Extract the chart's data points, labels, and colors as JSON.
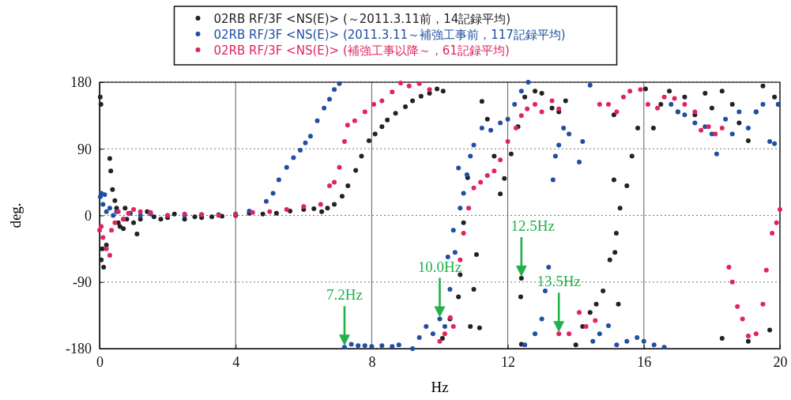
{
  "chart_data": {
    "type": "scatter",
    "xlabel": "Hz",
    "ylabel": "deg.",
    "xlim": [
      0,
      20
    ],
    "xticks": [
      0,
      4,
      8,
      12,
      16,
      20
    ],
    "ylim": [
      -180,
      180
    ],
    "yticks": [
      -180,
      -90,
      0,
      90,
      180
    ],
    "grid": true,
    "legend": "top",
    "marker": "circle",
    "annotations": [
      {
        "text": "7.2Hz",
        "x": 7.2,
        "y": -178
      },
      {
        "text": "10.0Hz",
        "x": 10.0,
        "y": -140
      },
      {
        "text": "12.5Hz",
        "x": 12.4,
        "y": -85
      },
      {
        "text": "13.5Hz",
        "x": 13.5,
        "y": -160
      }
    ],
    "series": [
      {
        "name": "02RB RF/3F <NS(E)>  (～2011.3.11前，14記録平均)",
        "color": "#222222",
        "x": [
          0.02,
          0.04,
          0.05,
          0.08,
          0.12,
          0.2,
          0.3,
          0.33,
          0.38,
          0.45,
          0.5,
          0.55,
          0.6,
          0.7,
          0.75,
          0.8,
          0.9,
          1.0,
          1.1,
          1.2,
          1.4,
          1.6,
          1.8,
          2.0,
          2.2,
          2.5,
          2.8,
          3.0,
          3.3,
          3.6,
          4.0,
          4.4,
          4.8,
          5.2,
          5.6,
          6.0,
          6.3,
          6.53,
          6.7,
          6.9,
          7.13,
          7.3,
          7.53,
          7.7,
          7.92,
          8.1,
          8.3,
          8.46,
          8.7,
          8.99,
          9.2,
          9.45,
          9.7,
          9.92,
          10.08,
          10.1,
          10.3,
          10.55,
          10.6,
          10.7,
          10.82,
          10.9,
          11.0,
          11.08,
          11.17,
          11.24,
          11.4,
          11.6,
          11.78,
          11.9,
          12.1,
          12.3,
          12.38,
          12.4,
          12.4,
          12.5,
          12.8,
          13.0,
          13.3,
          13.5,
          13.7,
          14.0,
          14.2,
          14.42,
          14.6,
          14.8,
          15.0,
          15.12,
          15.12,
          15.15,
          15.19,
          15.25,
          15.3,
          15.5,
          15.65,
          15.82,
          16.05,
          16.28,
          16.5,
          16.75,
          17.0,
          17.2,
          17.5,
          17.8,
          18.0,
          18.3,
          18.3,
          18.6,
          18.8,
          19.07,
          19.07,
          19.3,
          19.5,
          19.7,
          19.84,
          19.95
        ],
        "values": [
          160,
          150,
          -60,
          -45,
          -70,
          -40,
          77,
          60,
          35,
          20,
          10,
          -10,
          -15,
          -18,
          10,
          -5,
          3,
          -10,
          -25,
          -5,
          5,
          -2,
          -5,
          -3,
          2,
          -5,
          -2,
          -3,
          -2,
          -1,
          0,
          3,
          2,
          3,
          6,
          8,
          9,
          5,
          10,
          15,
          26,
          40,
          61,
          80,
          101,
          110,
          120,
          129,
          138,
          147,
          155,
          161,
          165,
          171,
          -166,
          168,
          -140,
          -110,
          -80,
          -10,
          51,
          -150,
          -100,
          -53,
          -152,
          154,
          130,
          80,
          29,
          50,
          83,
          120,
          -110,
          -85,
          -174,
          160,
          168,
          165,
          145,
          140,
          155,
          -175,
          -150,
          -131,
          -120,
          -102,
          -60,
          136,
          48,
          -50,
          -24,
          -120,
          10,
          40,
          80,
          118,
          171,
          118,
          150,
          168,
          140,
          160,
          136,
          165,
          145,
          168,
          -166,
          150,
          125,
          101,
          -170,
          140,
          175,
          -155,
          160,
          150
        ]
      },
      {
        "name": "02RB RF/3F <NS(E)>  (2011.3.11～補強工事前，117記録平均)",
        "color": "#1f4fa3",
        "x": [
          0.02,
          0.05,
          0.1,
          0.15,
          0.2,
          0.3,
          0.4,
          0.5,
          0.7,
          0.9,
          1.2,
          1.5,
          2.0,
          2.5,
          3.0,
          3.5,
          4.0,
          4.4,
          4.9,
          5.1,
          5.27,
          5.5,
          5.7,
          5.9,
          6.05,
          6.2,
          6.4,
          6.6,
          6.76,
          6.9,
          7.05,
          7.2,
          7.4,
          7.6,
          7.8,
          8.0,
          8.3,
          8.6,
          8.8,
          9.2,
          9.4,
          9.6,
          9.8,
          10.0,
          10.15,
          10.24,
          10.3,
          10.4,
          10.45,
          10.55,
          10.6,
          10.7,
          10.8,
          10.9,
          11.0,
          11.24,
          11.5,
          11.78,
          12.0,
          12.2,
          12.4,
          12.5,
          12.6,
          12.8,
          13.0,
          13.1,
          13.2,
          13.33,
          13.4,
          13.5,
          13.64,
          13.8,
          14.1,
          14.2,
          14.42,
          14.5,
          14.7,
          14.96,
          15.2,
          15.5,
          15.8,
          16.0,
          16.3,
          16.6,
          16.8,
          17.0,
          17.2,
          17.5,
          17.8,
          18.0,
          18.14,
          18.4,
          18.6,
          18.8,
          19.07,
          19.3,
          19.5,
          19.7,
          19.84,
          19.95
        ],
        "values": [
          25,
          30,
          15,
          28,
          5,
          10,
          0,
          5,
          -5,
          3,
          0,
          2,
          0,
          0,
          1,
          1,
          2,
          6,
          19,
          30,
          48,
          65,
          78,
          88,
          98,
          107,
          128,
          145,
          157,
          170,
          178,
          -178,
          -174,
          -176,
          -176,
          -177,
          -176,
          -177,
          -175,
          -180,
          -165,
          -150,
          -160,
          -140,
          -150,
          -56,
          -100,
          -20,
          -50,
          64,
          10,
          30,
          55,
          80,
          95,
          118,
          115,
          125,
          130,
          150,
          168,
          -175,
          180,
          -160,
          -140,
          -102,
          -70,
          48,
          80,
          95,
          118,
          110,
          72,
          100,
          176,
          -170,
          -160,
          -149,
          -175,
          -170,
          -165,
          -170,
          -175,
          -178,
          150,
          140,
          136,
          125,
          120,
          110,
          83,
          130,
          110,
          140,
          118,
          140,
          150,
          100,
          97,
          150
        ]
      },
      {
        "name": "02RB RF/3F <NS(E)>  (補強工事以降～，61記録平均)",
        "color": "#e0245e",
        "x": [
          0.0,
          0.05,
          0.1,
          0.2,
          0.3,
          0.35,
          0.45,
          0.55,
          0.7,
          0.85,
          1.0,
          1.2,
          1.5,
          2.0,
          2.5,
          3.0,
          3.5,
          4.0,
          4.5,
          5.0,
          5.5,
          6.0,
          6.5,
          6.76,
          6.9,
          7.05,
          7.2,
          7.29,
          7.5,
          7.8,
          8.06,
          8.3,
          8.6,
          8.85,
          9.1,
          9.4,
          9.7,
          10.0,
          10.15,
          10.31,
          10.4,
          10.6,
          10.7,
          10.85,
          11.0,
          11.2,
          11.4,
          11.6,
          11.78,
          12.0,
          12.24,
          12.4,
          12.57,
          12.8,
          13.0,
          13.3,
          13.5,
          13.5,
          13.8,
          14.1,
          14.3,
          14.57,
          14.7,
          14.96,
          15.2,
          15.4,
          15.59,
          15.9,
          16.12,
          16.4,
          16.6,
          16.9,
          17.2,
          17.5,
          17.68,
          17.9,
          18.1,
          18.3,
          18.5,
          18.6,
          18.75,
          18.9,
          19.07,
          19.3,
          19.5,
          19.6,
          19.77,
          19.9,
          20.0
        ],
        "values": [
          -20,
          -15,
          -30,
          -45,
          -54,
          -20,
          -10,
          5,
          -5,
          3,
          8,
          5,
          4,
          0,
          2,
          1,
          0,
          1,
          4,
          5,
          8,
          12,
          15,
          40,
          45,
          65,
          100,
          122,
          128,
          140,
          150,
          155,
          167,
          179,
          175,
          178,
          170,
          -170,
          -160,
          -138,
          -150,
          -60,
          -24,
          10,
          37,
          45,
          54,
          60,
          75,
          100,
          118,
          135,
          144,
          150,
          140,
          155,
          144,
          -160,
          -160,
          -131,
          -150,
          -142,
          150,
          150,
          140,
          160,
          168,
          170,
          150,
          145,
          160,
          158,
          150,
          140,
          115,
          120,
          110,
          118,
          -70,
          -90,
          -123,
          -140,
          -163,
          -160,
          -120,
          -74,
          -24,
          -10,
          8
        ]
      }
    ]
  }
}
